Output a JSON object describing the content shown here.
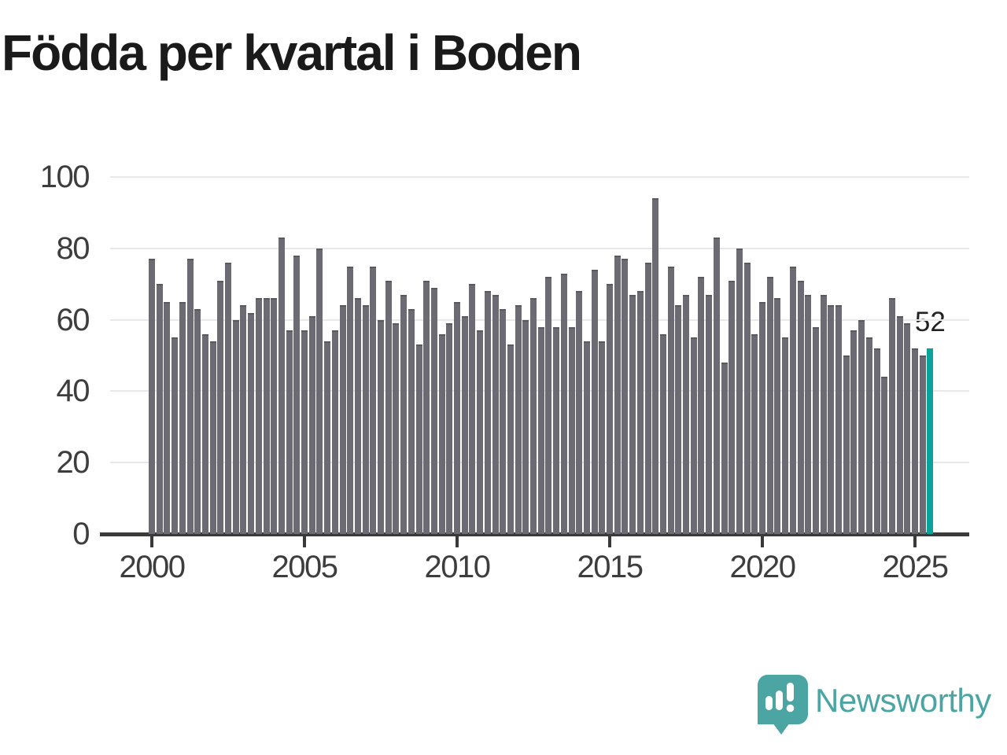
{
  "chart_data": {
    "type": "bar",
    "title": "Födda per kvartal i Boden",
    "subtitle": "",
    "xlabel": "",
    "ylabel": "",
    "grid": "horizontal",
    "legend": "none",
    "bar_color": "#6c6b73",
    "y_axis": {
      "ticks": [
        0,
        20,
        40,
        60,
        80,
        100
      ],
      "range": [
        0,
        100
      ]
    },
    "x_axis": {
      "tick_years": [
        2000,
        2005,
        2010,
        2015,
        2020,
        2025
      ]
    },
    "series": [
      {
        "name": "Födda per kvartal",
        "start": "2000 Q1",
        "end": "2025 Q3",
        "values_by_year": {
          "2000": [
            77,
            70,
            65,
            55
          ],
          "2001": [
            65,
            77,
            63,
            56
          ],
          "2002": [
            54,
            71,
            76,
            60
          ],
          "2003": [
            64,
            62,
            66,
            66
          ],
          "2004": [
            66,
            83,
            57,
            78
          ],
          "2005": [
            57,
            61,
            80,
            54
          ],
          "2006": [
            57,
            64,
            75,
            66
          ],
          "2007": [
            64,
            75,
            60,
            71
          ],
          "2008": [
            59,
            67,
            63,
            53
          ],
          "2009": [
            71,
            69,
            56,
            59
          ],
          "2010": [
            65,
            61,
            70,
            57
          ],
          "2011": [
            68,
            67,
            63,
            53
          ],
          "2012": [
            64,
            60,
            66,
            58
          ],
          "2013": [
            72,
            58,
            73,
            58
          ],
          "2014": [
            68,
            54,
            74,
            54
          ],
          "2015": [
            70,
            78,
            77,
            67
          ],
          "2016": [
            68,
            76,
            94,
            56
          ],
          "2017": [
            75,
            64,
            67,
            55
          ],
          "2018": [
            72,
            67,
            83,
            48
          ],
          "2019": [
            71,
            80,
            76,
            56
          ],
          "2020": [
            65,
            72,
            66,
            55
          ],
          "2021": [
            75,
            71,
            67,
            58
          ],
          "2022": [
            67,
            64,
            64,
            50
          ],
          "2023": [
            57,
            60,
            55,
            52
          ],
          "2024": [
            44,
            66,
            61,
            59
          ],
          "2025": [
            52,
            50,
            52
          ]
        }
      }
    ],
    "highlight": {
      "quarter": "2025 Q3",
      "value": 52,
      "label": "52",
      "color": "#0aa39c"
    }
  },
  "axis_tick_labels": {
    "y": [
      "0",
      "20",
      "40",
      "60",
      "80",
      "100"
    ],
    "x": [
      "2000",
      "2005",
      "2010",
      "2015",
      "2020",
      "2025"
    ]
  },
  "branding": {
    "logo_text": "Newsworthy",
    "logo_color": "#4aa5a3"
  }
}
